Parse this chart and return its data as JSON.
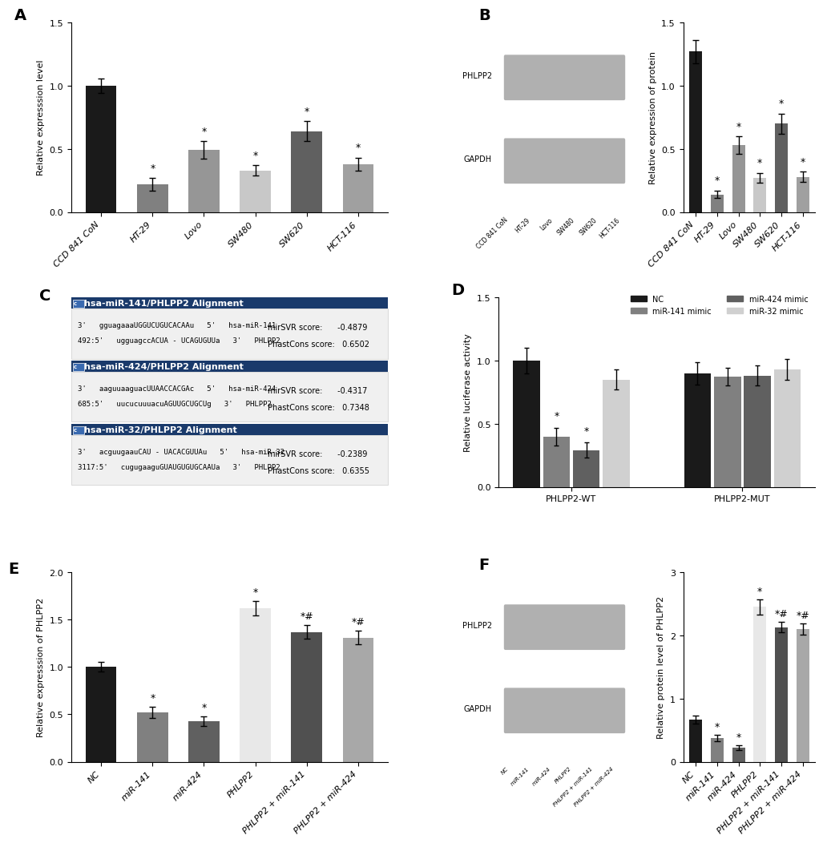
{
  "panel_A": {
    "categories": [
      "CCD 841 CoN",
      "HT-29",
      "Lovo",
      "SW480",
      "SW620",
      "HCT-116"
    ],
    "values": [
      1.0,
      0.22,
      0.49,
      0.33,
      0.64,
      0.38
    ],
    "errors": [
      0.06,
      0.05,
      0.07,
      0.04,
      0.08,
      0.05
    ],
    "colors": [
      "#1a1a1a",
      "#808080",
      "#969696",
      "#c8c8c8",
      "#606060",
      "#a0a0a0"
    ],
    "ylabel": "Relative expresssion level",
    "ylim": [
      0,
      1.5
    ],
    "yticks": [
      0.0,
      0.5,
      1.0,
      1.5
    ],
    "star_indices": [
      1,
      2,
      3,
      4,
      5
    ]
  },
  "panel_B_bar": {
    "categories": [
      "CCD 841 CoN",
      "HT-29",
      "Lovo",
      "SW480",
      "SW620",
      "HCT-116"
    ],
    "values": [
      1.27,
      0.14,
      0.53,
      0.27,
      0.7,
      0.28
    ],
    "errors": [
      0.09,
      0.03,
      0.07,
      0.04,
      0.08,
      0.04
    ],
    "colors": [
      "#1a1a1a",
      "#808080",
      "#969696",
      "#c8c8c8",
      "#606060",
      "#a0a0a0"
    ],
    "ylabel": "Relative expression of protein",
    "ylim": [
      0,
      1.5
    ],
    "yticks": [
      0.0,
      0.5,
      1.0,
      1.5
    ],
    "star_indices": [
      1,
      2,
      3,
      4,
      5
    ]
  },
  "panel_C": {
    "alignments": [
      {
        "header": "hsa-miR-141/PHLPP2 Alignment",
        "line1": "3'   gguagaaaUGGUCUGUCACAAu   5'   hsa-miR-141",
        "bonds": "              | |   |   | | | | | | |",
        "line2": "492:5'   ugguagccACUA - UCAGUGUUa   3'   PHLPP2",
        "mirsvr": "mirSVR score:      -0.4879",
        "phast": "PhastCons score:   0.6502"
      },
      {
        "header": "hsa-miR-424/PHLPP2 Alignment",
        "line1": "3'   aaguuaaguacUUAACCACGAc   5'   hsa-miR-424",
        "bonds": "                | |   |   | | | | |",
        "line2": "685:5'   uucucuuuacuAGUUGCUGCUg   3'   PHLPP2",
        "mirsvr": "mirSVR score:      -0.4317",
        "phast": "PhastCons score:   0.7348"
      },
      {
        "header": "hsa-miR-32/PHLPP2 Alignment",
        "line1": "3'   acguugaauCAU - UACACGUUAu   5'   hsa-miR-32",
        "bonds": "               | |   |   | | | | |",
        "line2": "3117:5'   cugugaaguGUAUGUGUGCAAUa   3'   PHLPP2",
        "mirsvr": "mirSVR score:      -0.2389",
        "phast": "PhastCons score:   0.6355"
      }
    ],
    "header_color": "#1a3a6b",
    "body_bg": "#f0f0f0",
    "header_text_color": "#ffffff"
  },
  "panel_D": {
    "groups": [
      "PHLPP2-WT",
      "PHLPP2-MUT"
    ],
    "conditions": [
      "NC",
      "miR-141 mimic",
      "miR-424 mimic",
      "miR-32 mimic"
    ],
    "values": {
      "PHLPP2-WT": [
        1.0,
        0.4,
        0.29,
        0.85
      ],
      "PHLPP2-MUT": [
        0.9,
        0.87,
        0.88,
        0.93
      ]
    },
    "errors": {
      "PHLPP2-WT": [
        0.1,
        0.07,
        0.06,
        0.08
      ],
      "PHLPP2-MUT": [
        0.09,
        0.07,
        0.08,
        0.08
      ]
    },
    "colors": [
      "#1a1a1a",
      "#808080",
      "#606060",
      "#d0d0d0"
    ],
    "ylabel": "Relative luciferase activity",
    "ylim": [
      0,
      1.5
    ],
    "yticks": [
      0.0,
      0.5,
      1.0,
      1.5
    ],
    "legend_labels": [
      "NC",
      "miR-141 mimic",
      "miR-424 mimic",
      "miR-32 mimic"
    ],
    "star_wt": [
      1,
      2
    ]
  },
  "panel_E": {
    "categories": [
      "NC",
      "miR-141",
      "miR-424",
      "PHLPP2",
      "PHLPP2 + miR-141",
      "PHLPP2 + miR-424"
    ],
    "values": [
      1.0,
      0.52,
      0.43,
      1.62,
      1.37,
      1.31
    ],
    "errors": [
      0.05,
      0.06,
      0.05,
      0.08,
      0.07,
      0.07
    ],
    "colors": [
      "#1a1a1a",
      "#808080",
      "#606060",
      "#e8e8e8",
      "#505050",
      "#a8a8a8"
    ],
    "ylabel": "Relative expresssion of PHLPP2",
    "ylim": [
      0,
      2.0
    ],
    "yticks": [
      0.0,
      0.5,
      1.0,
      1.5,
      2.0
    ],
    "star_indices": [
      1,
      2,
      3,
      4,
      5
    ],
    "hash_indices": [
      4,
      5
    ]
  },
  "panel_F_bar": {
    "categories": [
      "NC",
      "miR-141",
      "miR-424",
      "PHLPP2",
      "PHLPP2 + miR-141",
      "PHLPP2 + miR-424"
    ],
    "values": [
      0.67,
      0.37,
      0.22,
      2.45,
      2.13,
      2.1
    ],
    "errors": [
      0.06,
      0.05,
      0.04,
      0.12,
      0.08,
      0.09
    ],
    "colors": [
      "#1a1a1a",
      "#808080",
      "#606060",
      "#e8e8e8",
      "#505050",
      "#a8a8a8"
    ],
    "ylabel": "Relative protein level of PHLPP2",
    "ylim": [
      0,
      3
    ],
    "yticks": [
      0,
      1,
      2,
      3
    ],
    "star_indices": [
      1,
      2,
      3,
      4,
      5
    ],
    "hash_indices": [
      4,
      5
    ]
  },
  "bg_color": "#ffffff",
  "axis_color": "#333333",
  "font_size": 8,
  "label_font_size": 8,
  "tick_font_size": 8
}
